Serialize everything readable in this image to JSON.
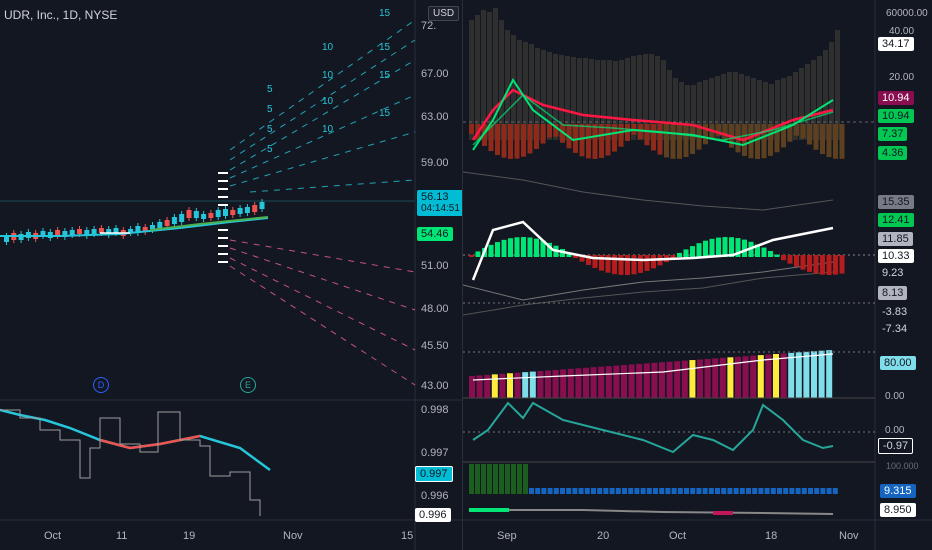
{
  "left_chart": {
    "symbol_title": "UDR, Inc., 1D, NYSE",
    "currency_badge": "USD",
    "price_axis": [
      "72.00",
      "67.00",
      "63.00",
      "59.00",
      "51.00",
      "48.00",
      "45.50",
      "43.00"
    ],
    "price_axis_top_partial": "72.",
    "current_price": "56.13",
    "countdown": "04:14:51",
    "ma_value": "54.46",
    "marker_d": "D",
    "marker_e": "E",
    "projection_labels_upper": [
      "15",
      "10",
      "15",
      "10",
      "15",
      "5",
      "10",
      "15",
      "5",
      "10",
      "5",
      "15",
      "5",
      "10",
      "5"
    ],
    "osc_axis": [
      "0.998",
      "0.997",
      "0.996"
    ],
    "osc_value_cyan": "0.997",
    "osc_value_white": "0.996",
    "time_axis": [
      "Oct",
      "11",
      "19",
      "Nov",
      "15"
    ],
    "colors": {
      "up": "#26c6da",
      "down": "#ef5350",
      "ma": "#4caf50",
      "cyan_line": "#26c6da",
      "red_segment": "#ef5350"
    }
  },
  "right_chart": {
    "axis_top": [
      "60000.00",
      "40.00",
      "20.00",
      "0.00"
    ],
    "tags_top": [
      "34.17",
      "10.94",
      "10.94",
      "7.37",
      "4.36"
    ],
    "tags_mid": [
      "15.35",
      "12.41",
      "11.85",
      "10.33",
      "9.23",
      "8.13",
      "-3.83",
      "-7.34"
    ],
    "tag_80": "80.00",
    "axis_low": [
      "0.00",
      "0.00"
    ],
    "tag_neg": "-0.97",
    "axis_bottom_partial": "100.000",
    "tags_bottom": [
      "9.315",
      "8.950"
    ],
    "time_axis": [
      "Sep",
      "20",
      "Oct",
      "18",
      "Nov"
    ],
    "colors": {
      "green": "#00e676",
      "red": "#ff1744",
      "maroon": "#880e4f",
      "yellow": "#ffeb3b",
      "lightblue": "#80deea",
      "gray_bar": "#2f2f2f"
    }
  }
}
